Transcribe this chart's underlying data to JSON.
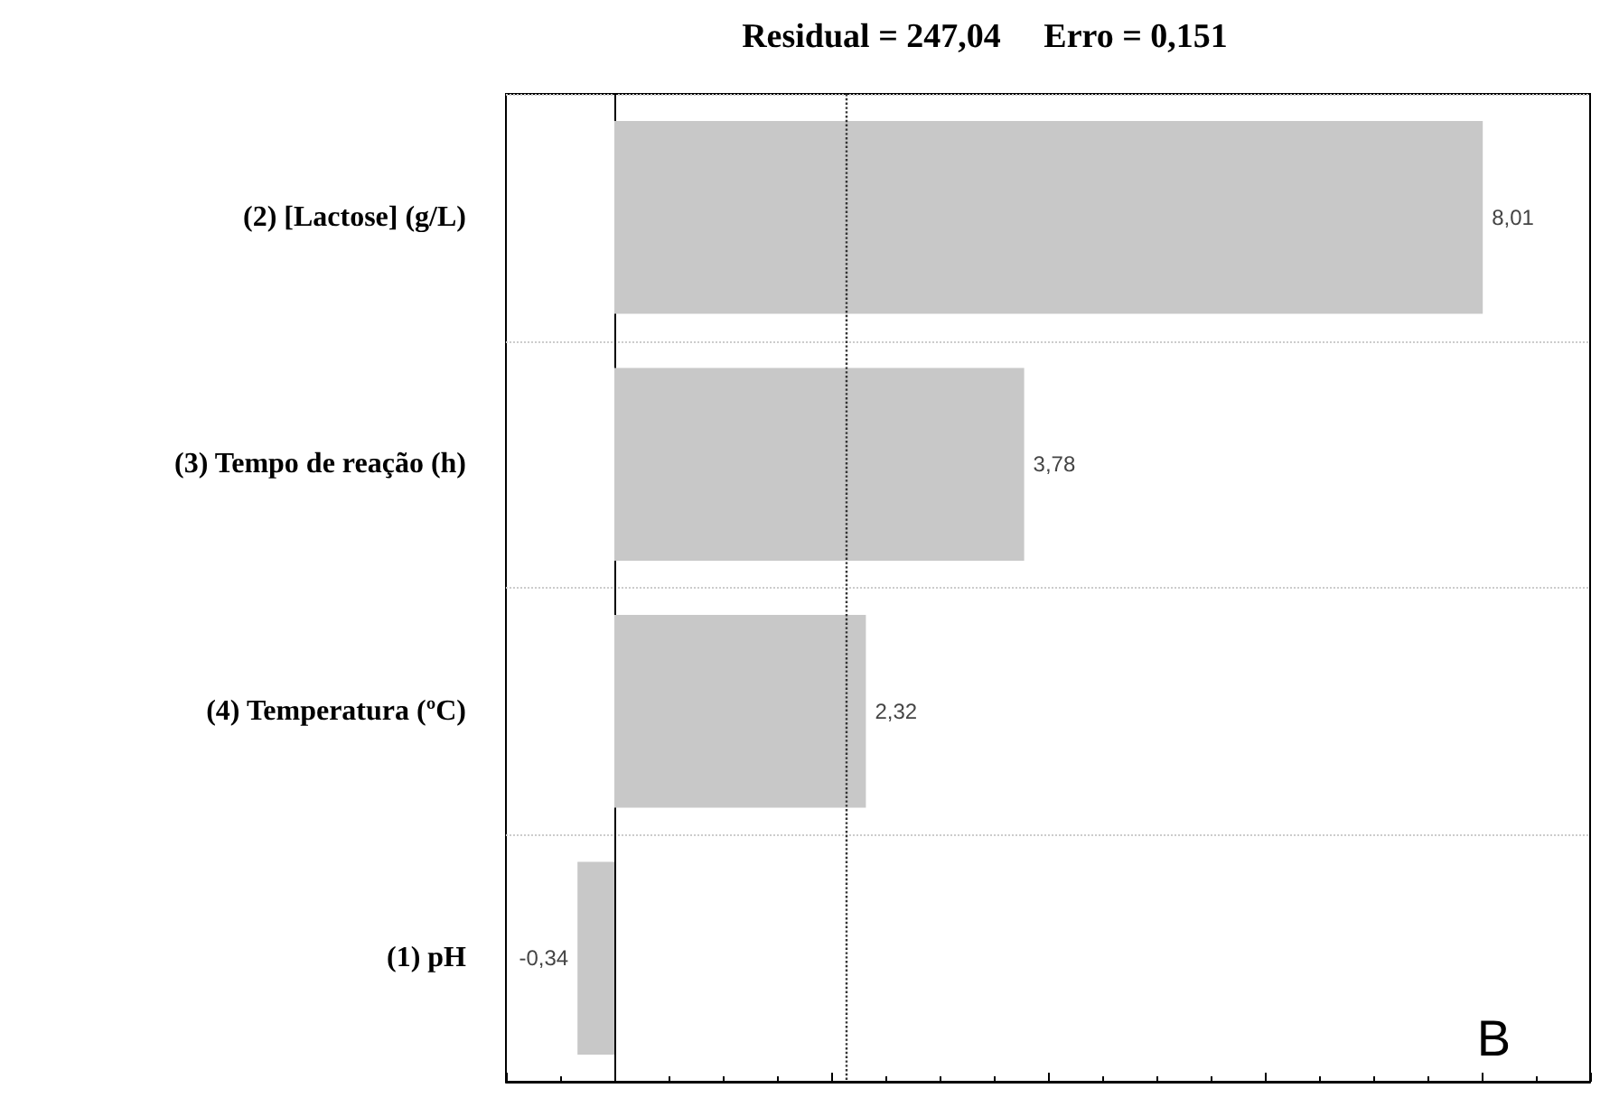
{
  "chart_data": {
    "type": "bar",
    "orientation": "horizontal",
    "title": "Residual = 247,04     Erro = 0,151",
    "categories": [
      "(2) [Lactose] (g/L)",
      "(3) Tempo de reação (h)",
      "(4) Temperatura (ºC)",
      "(1) pH"
    ],
    "values": [
      8.01,
      3.78,
      2.32,
      -0.34
    ],
    "value_labels": [
      "8,01",
      "3,78",
      "2,32",
      "-0,34"
    ],
    "color": "#c8c8c8",
    "xlim": [
      -1,
      9
    ],
    "tick_labels": "y",
    "grid": "y",
    "ref_lines": [
      {
        "axis": "x",
        "value": 2.13,
        "line_style": "dotted",
        "color": "#333333"
      }
    ],
    "annotations": [
      "B"
    ]
  }
}
